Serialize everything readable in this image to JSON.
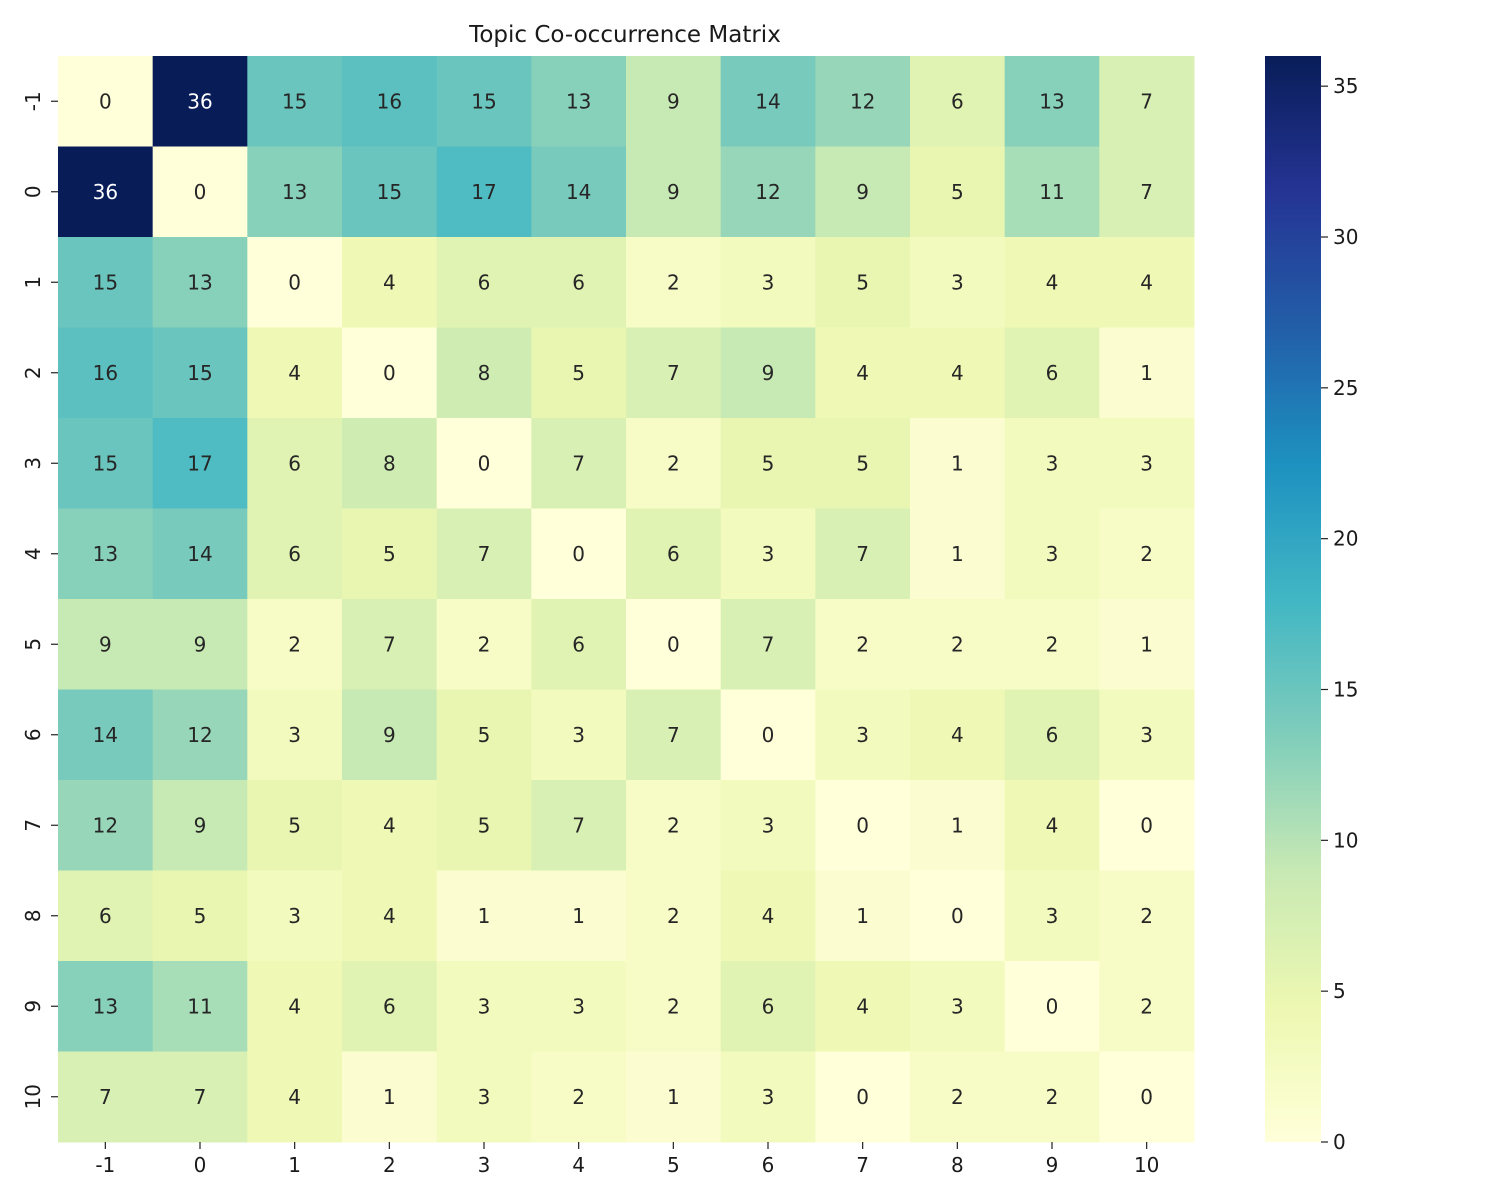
{
  "chart_data": {
    "type": "heatmap",
    "title": "Topic Co-occurrence Matrix",
    "xlabel": "",
    "ylabel": "",
    "x_categories": [
      "-1",
      "0",
      "1",
      "2",
      "3",
      "4",
      "5",
      "6",
      "7",
      "8",
      "9",
      "10"
    ],
    "y_categories": [
      "-1",
      "0",
      "1",
      "2",
      "3",
      "4",
      "5",
      "6",
      "7",
      "8",
      "9",
      "10"
    ],
    "values": [
      [
        0,
        36,
        15,
        16,
        15,
        13,
        9,
        14,
        12,
        6,
        13,
        7
      ],
      [
        36,
        0,
        13,
        15,
        17,
        14,
        9,
        12,
        9,
        5,
        11,
        7
      ],
      [
        15,
        13,
        0,
        4,
        6,
        6,
        2,
        3,
        5,
        3,
        4,
        4
      ],
      [
        16,
        15,
        4,
        0,
        8,
        5,
        7,
        9,
        4,
        4,
        6,
        1
      ],
      [
        15,
        17,
        6,
        8,
        0,
        7,
        2,
        5,
        5,
        1,
        3,
        3
      ],
      [
        13,
        14,
        6,
        5,
        7,
        0,
        6,
        3,
        7,
        1,
        3,
        2
      ],
      [
        9,
        9,
        2,
        7,
        2,
        6,
        0,
        7,
        2,
        2,
        2,
        1
      ],
      [
        14,
        12,
        3,
        9,
        5,
        3,
        7,
        0,
        3,
        4,
        6,
        3
      ],
      [
        12,
        9,
        5,
        4,
        5,
        7,
        2,
        3,
        0,
        1,
        4,
        0
      ],
      [
        6,
        5,
        3,
        4,
        1,
        1,
        2,
        4,
        1,
        0,
        3,
        2
      ],
      [
        13,
        11,
        4,
        6,
        3,
        3,
        2,
        6,
        4,
        3,
        0,
        2
      ],
      [
        7,
        7,
        4,
        1,
        3,
        2,
        1,
        3,
        0,
        2,
        2,
        0
      ]
    ],
    "colormap": "YlGnBu",
    "vmin": 0,
    "vmax": 36,
    "colorbar_ticks": [
      0,
      5,
      10,
      15,
      20,
      25,
      30,
      35
    ],
    "annotations": true,
    "grid": false
  }
}
